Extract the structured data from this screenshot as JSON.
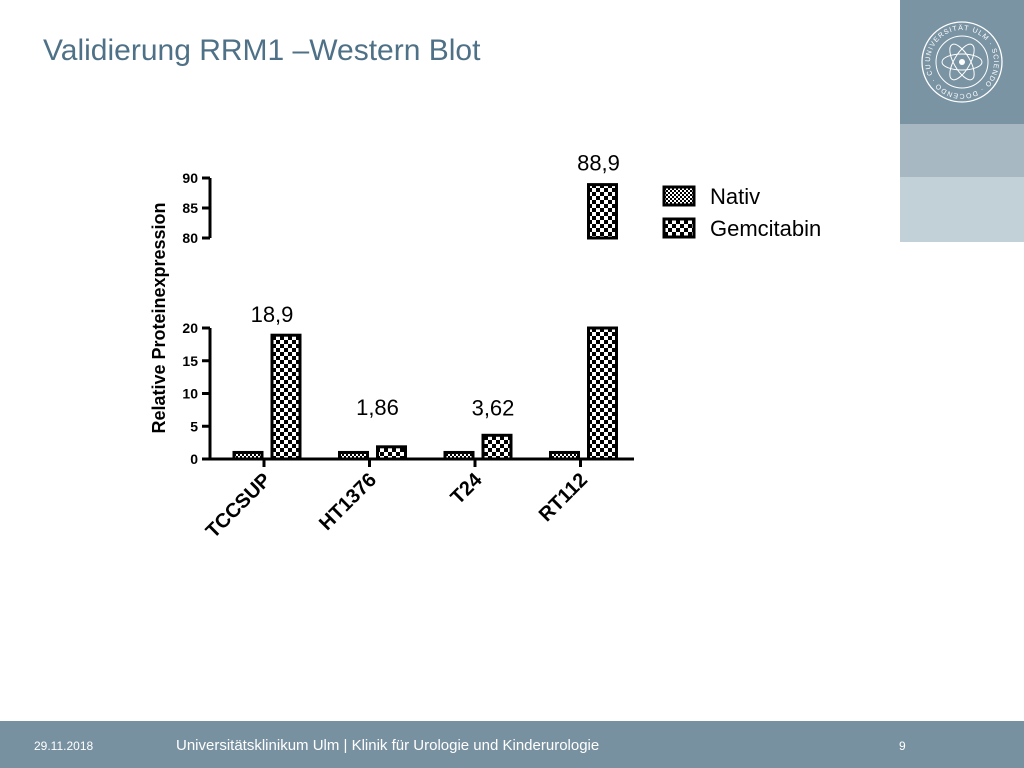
{
  "slide": {
    "title": "Validierung RRM1 –Western Blot"
  },
  "branding": {
    "logo_text": "UNIVERSITÄT ULM · SCIENDO · DOCENDO · CURANDO ·",
    "logo_icon": "university-seal-icon",
    "colors": {
      "block1": "#7a94a4",
      "block2": "#a8b8c3",
      "block3": "#c2d1d8",
      "footer": "#7891a1",
      "title": "#4f7187"
    }
  },
  "footer": {
    "date": "29.11.2018",
    "institution": "Universitätsklinikum Ulm | Klinik für Urologie und Kinderurologie",
    "page": "9"
  },
  "chart_data": {
    "type": "bar",
    "ylabel": "Relative Proteinexpression",
    "axis_break": true,
    "ylim_lower": [
      0,
      20
    ],
    "ylim_upper": [
      80,
      90
    ],
    "yticks_lower": [
      "0",
      "5",
      "10",
      "15",
      "20"
    ],
    "yticks_upper": [
      "80",
      "85",
      "90"
    ],
    "categories": [
      "TCCSUP",
      "HT1376",
      "T24",
      "RT112"
    ],
    "series": [
      {
        "name": "Nativ",
        "values": [
          1,
          1,
          1,
          1
        ]
      },
      {
        "name": "Gemcitabin",
        "values": [
          18.9,
          1.86,
          3.62,
          88.9
        ]
      }
    ],
    "data_labels": [
      "18,9",
      "1,86",
      "3,62",
      "88,9"
    ],
    "legend_position": "right"
  }
}
